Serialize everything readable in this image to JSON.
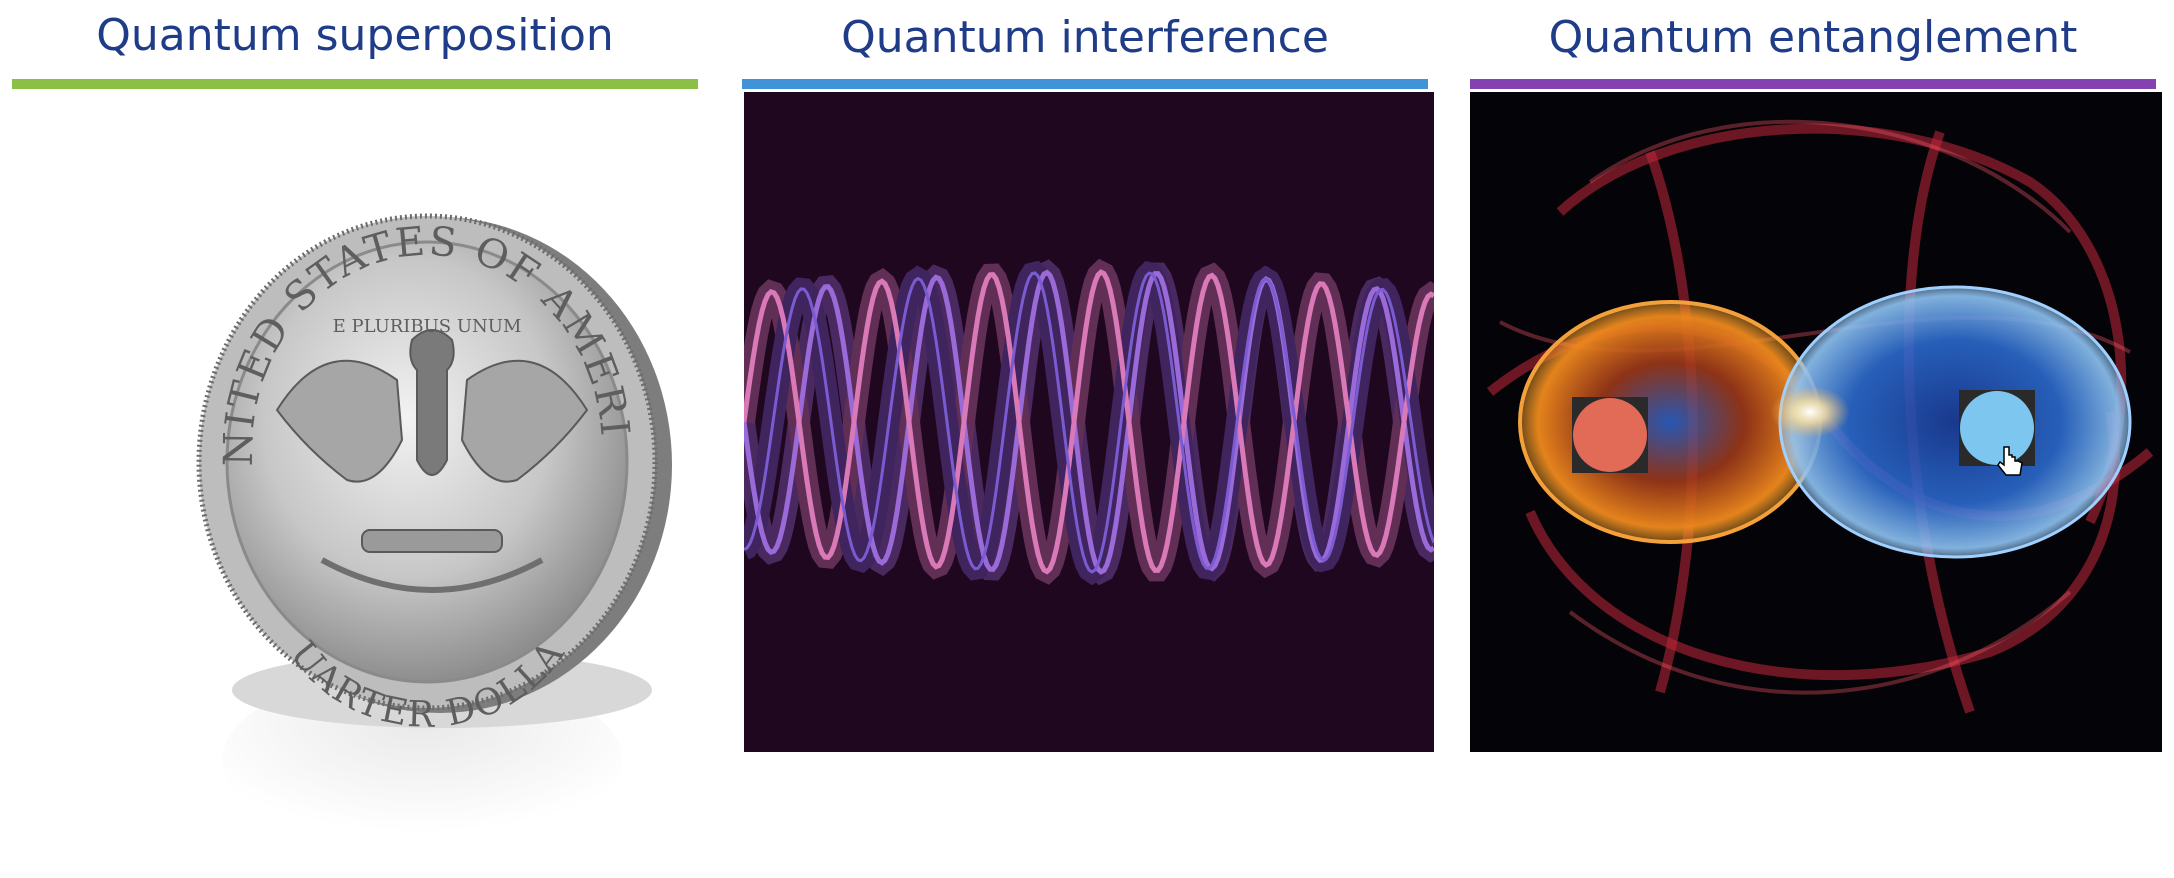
{
  "panels": [
    {
      "title": "Quantum superposition",
      "accent_color": "#8bbf45",
      "image": "coin-icon"
    },
    {
      "title": "Quantum interference",
      "accent_color": "#3f93d6",
      "image": "waves-icon"
    },
    {
      "title": "Quantum entanglement",
      "accent_color": "#8442b0",
      "image": "entangled-particles-icon"
    }
  ],
  "entanglement": {
    "particle_a_color": "#e26b58",
    "particle_b_color": "#7cc6ef"
  },
  "coin": {
    "top_text": "UNITED STATES OF AMERICA",
    "motto": "E PLURIBUS UNUM",
    "bottom_text": "QUARTER DOLLAR"
  }
}
